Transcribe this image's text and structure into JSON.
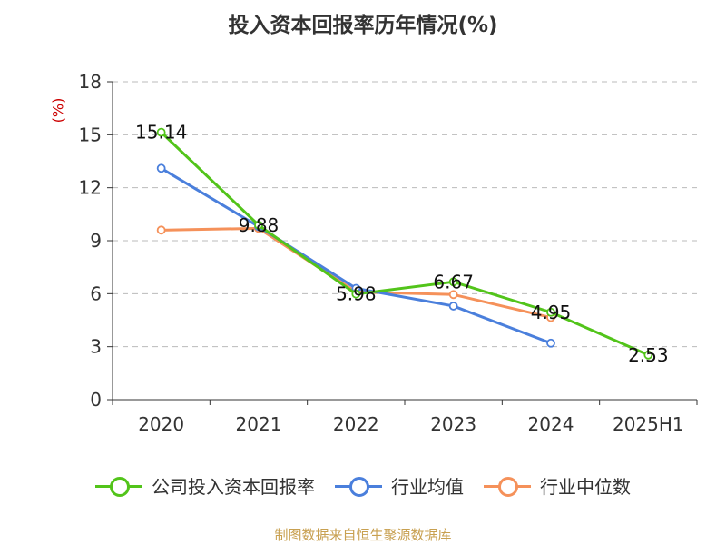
{
  "title": "投入资本回报率历年情况(%)",
  "unit_label": "(%)",
  "source": "制图数据来自恒生聚源数据库",
  "chart_data": {
    "type": "line",
    "categories": [
      "2020",
      "2021",
      "2022",
      "2023",
      "2024",
      "2025H1"
    ],
    "ylim": [
      0,
      18
    ],
    "yticks": [
      0,
      3,
      6,
      9,
      12,
      15,
      18
    ],
    "grid": true,
    "legend_position": "bottom",
    "series": [
      {
        "name": "公司投入资本回报率",
        "color": "#52c41a",
        "values": [
          15.14,
          9.88,
          5.98,
          6.67,
          4.95,
          2.53
        ],
        "labeled": true
      },
      {
        "name": "行业均值",
        "color": "#4a7fdc",
        "values": [
          13.1,
          9.8,
          6.3,
          5.3,
          3.2,
          null
        ],
        "labeled": false
      },
      {
        "name": "行业中位数",
        "color": "#f5915a",
        "values": [
          9.6,
          9.7,
          6.1,
          5.95,
          4.65,
          null
        ],
        "labeled": false
      }
    ],
    "data_labels": [
      "15.14",
      "9.88",
      "5.98",
      "6.67",
      "4.95",
      "2.53"
    ]
  }
}
